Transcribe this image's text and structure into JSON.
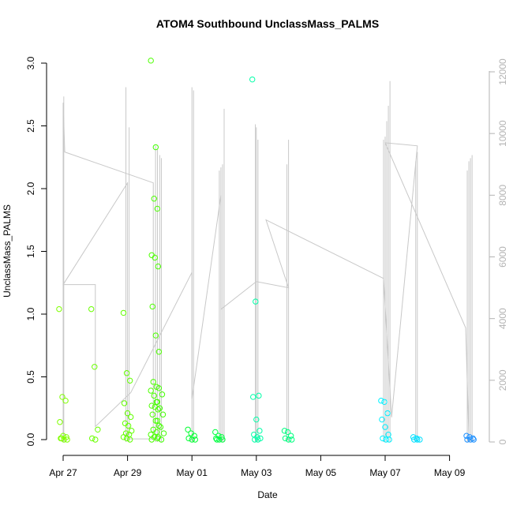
{
  "chart_data": {
    "type": "scatter",
    "title": "ATOM4 Southbound UnclassMass_PALMS",
    "xlabel": "Date",
    "ylabel": "UnclassMass_PALMS",
    "x_ticks": [
      "Apr 27",
      "Apr 29",
      "May 01",
      "May 03",
      "May 05",
      "May 07",
      "May 09"
    ],
    "x_range_days": [
      -0.5,
      13.5
    ],
    "x_tick_days": [
      0,
      2,
      4,
      6,
      8,
      10,
      12
    ],
    "ylim": [
      0,
      3.0
    ],
    "y_ticks": [
      "0.0",
      "0.5",
      "1.0",
      "1.5",
      "2.0",
      "2.5",
      "3.0"
    ],
    "y2_range": [
      0,
      12000
    ],
    "y2_ticks": [
      "0",
      "2000",
      "4000",
      "6000",
      "8000",
      "10000",
      "12000"
    ],
    "grid": false,
    "legend": "none",
    "secondary_series_color": "#c8c8c8",
    "color_scale": [
      "#80ff00",
      "#55ff00",
      "#00ff40",
      "#00ff80",
      "#00ffd0",
      "#00e5ff",
      "#00b0ff",
      "#1e90ff"
    ],
    "scatter_series": [
      {
        "day": 0.0,
        "values": [
          1.04,
          0.34,
          0.31,
          0.14,
          0.03,
          0.02,
          0.01,
          0.0,
          0.0,
          0.01
        ],
        "color": "#7fff00"
      },
      {
        "day": 1.0,
        "values": [
          1.04,
          0.58,
          0.08,
          0.01,
          0.0
        ],
        "color": "#6aff00"
      },
      {
        "day": 2.0,
        "values": [
          1.01,
          0.53,
          0.47,
          0.29,
          0.21,
          0.18,
          0.13,
          0.11,
          0.07,
          0.05,
          0.04,
          0.02,
          0.01,
          0.0
        ],
        "color": "#62ff00"
      },
      {
        "day": 2.85,
        "values": [
          3.02,
          1.92,
          1.84,
          1.47,
          1.45,
          1.38,
          1.06,
          0.83,
          0.7,
          0.46,
          0.42,
          0.39,
          0.35,
          0.3,
          0.27,
          0.26,
          0.24,
          0.2,
          0.15,
          0.11,
          0.08,
          0.06,
          0.04,
          0.02,
          0.01,
          0.0
        ],
        "color": "#4cff00"
      },
      {
        "day": 3.0,
        "values": [
          2.33,
          0.41,
          0.36,
          0.3,
          0.25,
          0.2,
          0.15,
          0.1,
          0.05,
          0.02,
          0.0
        ],
        "color": "#40ff00"
      },
      {
        "day": 4.0,
        "values": [
          0.08,
          0.05,
          0.03,
          0.01,
          0.0,
          0.0
        ],
        "color": "#00ff30"
      },
      {
        "day": 4.85,
        "values": [
          0.06,
          0.03,
          0.02,
          0.01,
          0.0,
          0.0,
          0.0
        ],
        "color": "#00ff40"
      },
      {
        "day": 6.0,
        "values": [
          2.87,
          1.1,
          0.35,
          0.34,
          0.16,
          0.07,
          0.04,
          0.02,
          0.01,
          0.0,
          0.0
        ],
        "color": "#00ffa8"
      },
      {
        "day": 7.0,
        "values": [
          0.07,
          0.06,
          0.03,
          0.01,
          0.0,
          0.0
        ],
        "color": "#00ff80"
      },
      {
        "day": 10.0,
        "values": [
          0.31,
          0.3,
          0.21,
          0.16,
          0.1,
          0.04,
          0.01,
          0.0,
          0.0
        ],
        "color": "#00f0ff"
      },
      {
        "day": 11.0,
        "values": [
          0.02,
          0.01,
          0.0,
          0.0,
          0.0
        ],
        "color": "#00e0ff"
      },
      {
        "day": 12.65,
        "values": [
          0.03,
          0.02,
          0.01,
          0.0,
          0.0,
          0.0
        ],
        "color": "#1e90ff"
      }
    ],
    "secondary_spikes": [
      {
        "day": 0.02,
        "top": 11200
      },
      {
        "day": 1.95,
        "top": 11500
      },
      {
        "day": 2.05,
        "top": 10200
      },
      {
        "day": 2.87,
        "top": 9600
      },
      {
        "day": 2.93,
        "top": 9500
      },
      {
        "day": 3.0,
        "top": 9300
      },
      {
        "day": 3.05,
        "top": 9200
      },
      {
        "day": 4.0,
        "top": 11500
      },
      {
        "day": 4.05,
        "top": 11400
      },
      {
        "day": 4.85,
        "top": 8800
      },
      {
        "day": 4.9,
        "top": 8900
      },
      {
        "day": 4.95,
        "top": 9000
      },
      {
        "day": 5.0,
        "top": 10800
      },
      {
        "day": 5.97,
        "top": 10300
      },
      {
        "day": 6.0,
        "top": 10200
      },
      {
        "day": 6.05,
        "top": 9800
      },
      {
        "day": 6.95,
        "top": 9000
      },
      {
        "day": 7.0,
        "top": 9800
      },
      {
        "day": 9.95,
        "top": 9800
      },
      {
        "day": 10.0,
        "top": 9900
      },
      {
        "day": 10.05,
        "top": 10400
      },
      {
        "day": 10.1,
        "top": 10900
      },
      {
        "day": 10.15,
        "top": 11700
      },
      {
        "day": 10.95,
        "top": 9100
      },
      {
        "day": 11.0,
        "top": 9400
      },
      {
        "day": 12.55,
        "top": 8800
      },
      {
        "day": 12.6,
        "top": 9100
      },
      {
        "day": 12.65,
        "top": 9200
      },
      {
        "day": 12.7,
        "top": 9300
      }
    ],
    "secondary_path": [
      [
        0.0,
        0
      ],
      [
        0.0,
        11000
      ],
      [
        0.05,
        9400
      ],
      [
        2.8,
        8400
      ],
      [
        2.8,
        100
      ],
      [
        2.0,
        100
      ],
      [
        2.0,
        8400
      ],
      [
        0.0,
        5100
      ],
      [
        1.0,
        5100
      ],
      [
        1.0,
        500
      ],
      [
        2.1,
        1600
      ],
      [
        4.0,
        5500
      ],
      [
        4.0,
        1400
      ],
      [
        4.9,
        8000
      ],
      [
        4.9,
        4300
      ],
      [
        6.0,
        5200
      ],
      [
        7.0,
        5000
      ],
      [
        6.3,
        7200
      ],
      [
        9.95,
        5300
      ],
      [
        10.2,
        800
      ],
      [
        11.0,
        9600
      ],
      [
        10.0,
        9700
      ],
      [
        12.5,
        3700
      ],
      [
        12.6,
        200
      ]
    ]
  }
}
